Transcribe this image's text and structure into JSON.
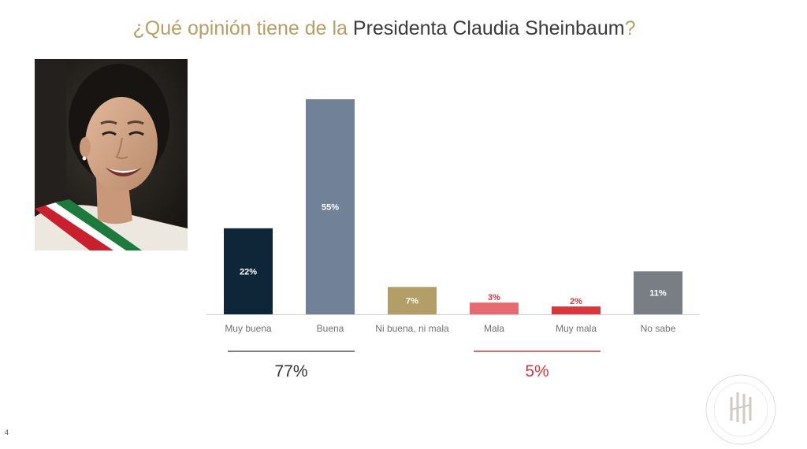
{
  "title": {
    "prefix": "¿Qué opinión tiene de la ",
    "emphasis": "Presidenta Claudia Sheinbaum",
    "suffix": "?"
  },
  "slide_number": "4",
  "chart_data": {
    "type": "bar",
    "categories": [
      "Muy buena",
      "Buena",
      "Ni buena, ni mala",
      "Mala",
      "Muy mala",
      "No sabe"
    ],
    "values": [
      22,
      55,
      7,
      3,
      2,
      11
    ],
    "data_labels": [
      "22%",
      "55%",
      "7%",
      "3%",
      "2%",
      "11%"
    ],
    "colors": [
      "#0f2639",
      "#718298",
      "#b39e68",
      "#e56b70",
      "#d9363e",
      "#787e84"
    ],
    "label_colors": [
      "#ffffff",
      "#ffffff",
      "#ffffff",
      "#d9363e",
      "#d9363e",
      "#ffffff"
    ],
    "ylim": [
      0,
      60
    ],
    "grid": false,
    "groups": [
      {
        "label": "77%",
        "start": 0,
        "end": 1,
        "color": "#555555",
        "text_color": "#333333"
      },
      {
        "label": "5%",
        "start": 3,
        "end": 4,
        "color": "#d9363e",
        "text_color": "#d9363e"
      }
    ]
  },
  "colors": {
    "title_gold": "#b89e63",
    "title_dark": "#3a3a3a",
    "axis": "#d0d0d0",
    "tick_text": "#707070"
  }
}
